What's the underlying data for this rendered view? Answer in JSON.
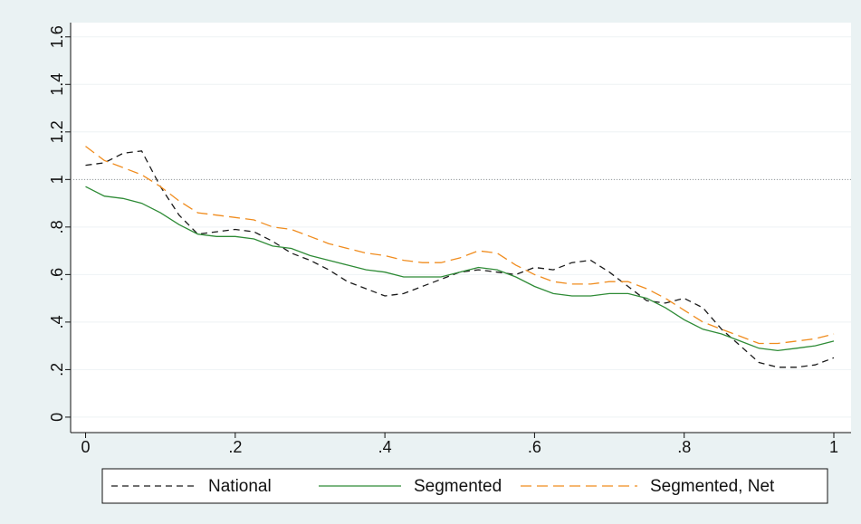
{
  "chart_data": {
    "type": "line",
    "x": [
      0,
      0.025,
      0.05,
      0.075,
      0.1,
      0.125,
      0.15,
      0.175,
      0.2,
      0.225,
      0.25,
      0.275,
      0.3,
      0.325,
      0.35,
      0.375,
      0.4,
      0.425,
      0.45,
      0.475,
      0.5,
      0.525,
      0.55,
      0.575,
      0.6,
      0.625,
      0.65,
      0.675,
      0.7,
      0.725,
      0.75,
      0.775,
      0.8,
      0.825,
      0.85,
      0.875,
      0.9,
      0.925,
      0.95,
      0.975,
      1
    ],
    "series": [
      {
        "name": "National",
        "color": "#1a1a1a",
        "values": [
          1.06,
          1.07,
          1.11,
          1.12,
          0.97,
          0.85,
          0.77,
          0.78,
          0.79,
          0.78,
          0.74,
          0.69,
          0.66,
          0.62,
          0.57,
          0.54,
          0.51,
          0.52,
          0.55,
          0.58,
          0.61,
          0.62,
          0.61,
          0.6,
          0.63,
          0.62,
          0.65,
          0.66,
          0.61,
          0.55,
          0.49,
          0.48,
          0.5,
          0.46,
          0.37,
          0.3,
          0.23,
          0.21,
          0.21,
          0.22,
          0.25
        ]
      },
      {
        "name": "Segmented",
        "color": "#2e8b36",
        "values": [
          0.97,
          0.93,
          0.92,
          0.9,
          0.86,
          0.81,
          0.77,
          0.76,
          0.76,
          0.75,
          0.72,
          0.71,
          0.68,
          0.66,
          0.64,
          0.62,
          0.61,
          0.59,
          0.59,
          0.59,
          0.61,
          0.63,
          0.62,
          0.59,
          0.55,
          0.52,
          0.51,
          0.51,
          0.52,
          0.52,
          0.5,
          0.46,
          0.41,
          0.37,
          0.35,
          0.32,
          0.29,
          0.28,
          0.29,
          0.3,
          0.32
        ]
      },
      {
        "name": "Segmented, Net",
        "color": "#f08c1e",
        "values": [
          1.14,
          1.08,
          1.05,
          1.02,
          0.97,
          0.91,
          0.86,
          0.85,
          0.84,
          0.83,
          0.8,
          0.79,
          0.76,
          0.73,
          0.71,
          0.69,
          0.68,
          0.66,
          0.65,
          0.65,
          0.67,
          0.7,
          0.69,
          0.64,
          0.6,
          0.57,
          0.56,
          0.56,
          0.57,
          0.57,
          0.54,
          0.5,
          0.45,
          0.4,
          0.37,
          0.34,
          0.31,
          0.31,
          0.32,
          0.33,
          0.35
        ]
      }
    ],
    "xlim": [
      -0.02,
      1.023
    ],
    "ylim": [
      -0.065,
      1.66
    ],
    "xticks": [
      0,
      {
        "value": 0.2,
        "label": ".2"
      },
      {
        "value": 0.4,
        "label": ".4"
      },
      {
        "value": 0.6,
        "label": ".6"
      },
      {
        "value": 0.8,
        "label": ".8"
      },
      1
    ],
    "yticks": [
      0,
      {
        "value": 0.2,
        "label": ".2"
      },
      {
        "value": 0.4,
        "label": ".4"
      },
      {
        "value": 0.6,
        "label": ".6"
      },
      {
        "value": 0.8,
        "label": ".8"
      },
      1,
      {
        "value": 1.2,
        "label": "1.2"
      },
      {
        "value": 1.4,
        "label": "1.4"
      },
      {
        "value": 1.6,
        "label": "1.6"
      }
    ],
    "reference_line": 1,
    "grid": true,
    "legend": "bottom"
  }
}
